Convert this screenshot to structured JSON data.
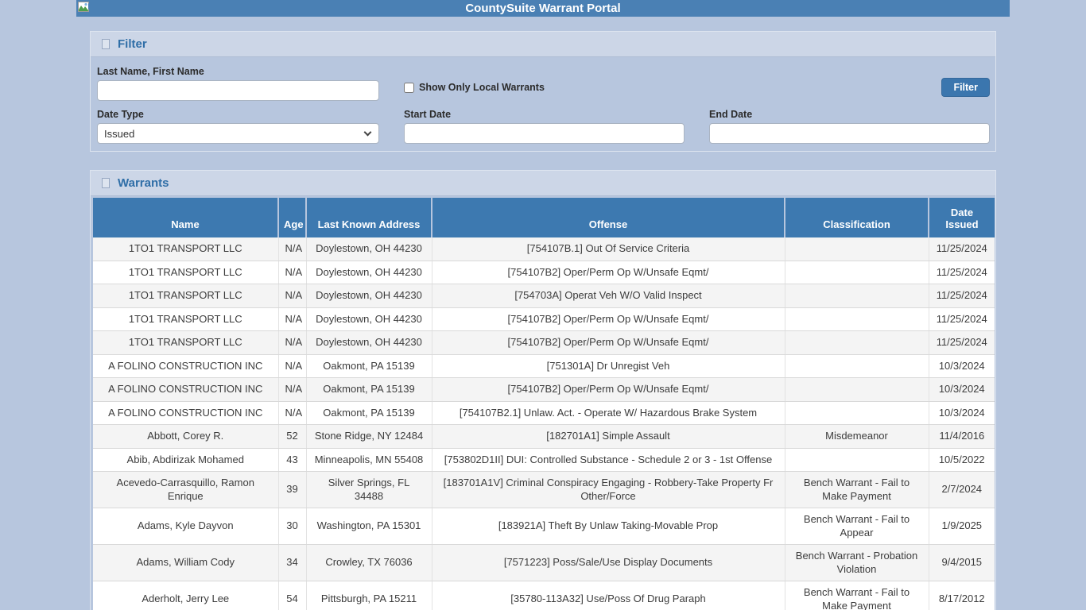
{
  "page": {
    "title": "CountySuite Warrant Portal"
  },
  "colors": {
    "titlebar": "#4a80b4",
    "page_background": "#b7c6de",
    "panel_header": "#ccd6e7",
    "table_header": "#3d79b0",
    "section_title": "#2f6ea7",
    "button": "#3b76ae",
    "row_stripe": "#f4f4f4"
  },
  "filter": {
    "section_title": "Filter",
    "name_label": "Last Name, First Name",
    "name_value": "",
    "local_checkbox_label": "Show Only Local Warrants",
    "local_checkbox_checked": false,
    "date_type_label": "Date Type",
    "date_type_value": "Issued",
    "start_date_label": "Start Date",
    "start_date_value": "",
    "end_date_label": "End Date",
    "end_date_value": "",
    "filter_button_label": "Filter"
  },
  "warrants": {
    "section_title": "Warrants",
    "columns": [
      "Name",
      "Age",
      "Last Known Address",
      "Offense",
      "Classification",
      "Date Issued"
    ],
    "rows": [
      {
        "name": "1TO1 TRANSPORT LLC",
        "age": "N/A",
        "address": "Doylestown, OH 44230",
        "offense": "[754107B.1] Out Of Service Criteria",
        "classification": "",
        "date": "11/25/2024"
      },
      {
        "name": "1TO1 TRANSPORT LLC",
        "age": "N/A",
        "address": "Doylestown, OH 44230",
        "offense": "[754107B2] Oper/Perm Op W/Unsafe Eqmt/",
        "classification": "",
        "date": "11/25/2024"
      },
      {
        "name": "1TO1 TRANSPORT LLC",
        "age": "N/A",
        "address": "Doylestown, OH 44230",
        "offense": "[754703A] Operat Veh W/O Valid Inspect",
        "classification": "",
        "date": "11/25/2024"
      },
      {
        "name": "1TO1 TRANSPORT LLC",
        "age": "N/A",
        "address": "Doylestown, OH 44230",
        "offense": "[754107B2] Oper/Perm Op W/Unsafe Eqmt/",
        "classification": "",
        "date": "11/25/2024"
      },
      {
        "name": "1TO1 TRANSPORT LLC",
        "age": "N/A",
        "address": "Doylestown, OH 44230",
        "offense": "[754107B2] Oper/Perm Op W/Unsafe Eqmt/",
        "classification": "",
        "date": "11/25/2024"
      },
      {
        "name": "A FOLINO CONSTRUCTION INC",
        "age": "N/A",
        "address": "Oakmont, PA 15139",
        "offense": "[751301A] Dr Unregist Veh",
        "classification": "",
        "date": "10/3/2024"
      },
      {
        "name": "A FOLINO CONSTRUCTION INC",
        "age": "N/A",
        "address": "Oakmont, PA 15139",
        "offense": "[754107B2] Oper/Perm Op W/Unsafe Eqmt/",
        "classification": "",
        "date": "10/3/2024"
      },
      {
        "name": "A FOLINO CONSTRUCTION INC",
        "age": "N/A",
        "address": "Oakmont, PA 15139",
        "offense": "[754107B2.1] Unlaw. Act. - Operate W/ Hazardous Brake System",
        "classification": "",
        "date": "10/3/2024"
      },
      {
        "name": "Abbott, Corey R.",
        "age": "52",
        "address": "Stone Ridge, NY 12484",
        "offense": "[182701A1] Simple Assault",
        "classification": "Misdemeanor",
        "date": "11/4/2016"
      },
      {
        "name": "Abib, Abdirizak Mohamed",
        "age": "43",
        "address": "Minneapolis, MN 55408",
        "offense": "[753802D1II] DUI: Controlled Substance - Schedule 2 or 3 - 1st Offense",
        "classification": "",
        "date": "10/5/2022"
      },
      {
        "name": "Acevedo-Carrasquillo, Ramon Enrique",
        "age": "39",
        "address": "Silver Springs, FL 34488",
        "offense": "[183701A1V] Criminal Conspiracy Engaging - Robbery-Take Property Fr Other/Force",
        "classification": "Bench Warrant - Fail to Make Payment",
        "date": "2/7/2024"
      },
      {
        "name": "Adams, Kyle Dayvon",
        "age": "30",
        "address": "Washington, PA 15301",
        "offense": "[183921A] Theft By Unlaw Taking-Movable Prop",
        "classification": "Bench Warrant - Fail to Appear",
        "date": "1/9/2025"
      },
      {
        "name": "Adams, William Cody",
        "age": "34",
        "address": "Crowley, TX 76036",
        "offense": "[7571223] Poss/Sale/Use Display Documents",
        "classification": "Bench Warrant - Probation Violation",
        "date": "9/4/2015"
      },
      {
        "name": "Aderholt, Jerry Lee",
        "age": "54",
        "address": "Pittsburgh, PA 15211",
        "offense": "[35780-113A32] Use/Poss Of Drug Paraph",
        "classification": "Bench Warrant - Fail to Make Payment",
        "date": "8/17/2012"
      }
    ]
  }
}
